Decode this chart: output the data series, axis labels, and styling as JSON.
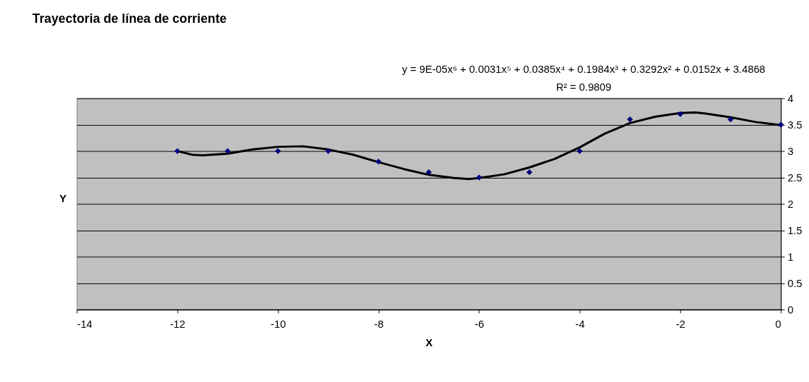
{
  "chart_data": {
    "type": "scatter",
    "title": "Trayectoria de línea de corriente",
    "xlabel": "X",
    "ylabel": "Y",
    "annotations": [
      "y = 9E-05x⁶ + 0.0031x⁵ + 0.0385x⁴ + 0.1984x³ + 0.3292x² + 0.0152x + 3.4868",
      "R² = 0.9809"
    ],
    "x": [
      -12,
      -11,
      -10,
      -9,
      -8,
      -7,
      -6,
      -5,
      -4,
      -3,
      -2,
      -1,
      0
    ],
    "series": [
      {
        "color": "#000080",
        "marker": "diamond",
        "values": [
          3,
          3,
          3,
          3,
          2.8,
          2.6,
          2.5,
          2.6,
          3,
          3.6,
          3.7,
          3.6,
          3.5
        ]
      },
      {
        "type": "line",
        "color": "#000000",
        "line_style": "solid",
        "x": [
          -12,
          -11.7,
          -11.5,
          -11,
          -10.5,
          -10,
          -9.5,
          -9,
          -8.5,
          -8,
          -7.5,
          -7,
          -6.5,
          -6.2,
          -6,
          -5.5,
          -5,
          -4.5,
          -4,
          -3.5,
          -3,
          -2.5,
          -2,
          -1.7,
          -1.5,
          -1,
          -0.5,
          0
        ],
        "values": [
          3.0,
          2.93,
          2.92,
          2.95,
          3.03,
          3.08,
          3.09,
          3.03,
          2.93,
          2.79,
          2.66,
          2.55,
          2.49,
          2.47,
          2.49,
          2.56,
          2.69,
          2.85,
          3.07,
          3.33,
          3.53,
          3.65,
          3.72,
          3.73,
          3.71,
          3.64,
          3.55,
          3.49
        ]
      }
    ],
    "xlim": [
      -14,
      0
    ],
    "xticks": [
      -14,
      -12,
      -10,
      -8,
      -6,
      -4,
      -2,
      0
    ],
    "ylim": [
      0,
      4
    ],
    "yticks": [
      0,
      0.5,
      1,
      1.5,
      2,
      2.5,
      3,
      3.5,
      4
    ],
    "grid": "y",
    "legend": false
  }
}
